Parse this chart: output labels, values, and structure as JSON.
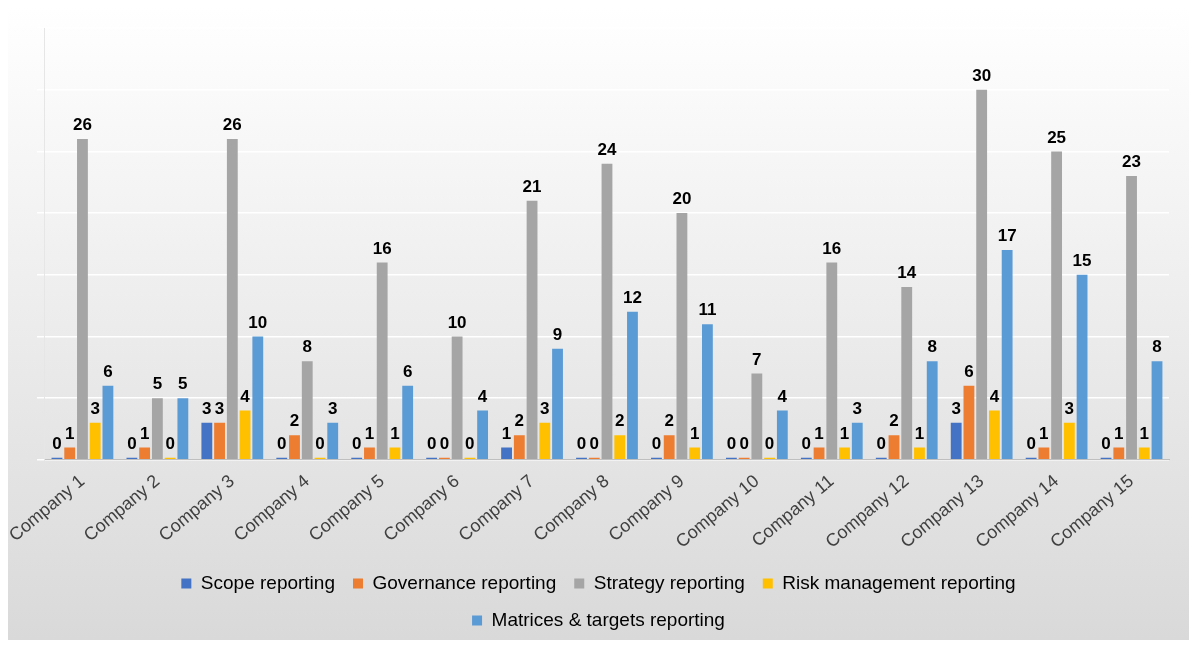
{
  "chart_data": {
    "type": "bar",
    "categories": [
      "Company 1",
      "Company 2",
      "Company 3",
      "Company 4",
      "Company 5",
      "Company 6",
      "Company 7",
      "Company 8",
      "Company 9",
      "Company 10",
      "Company 11",
      "Company 12",
      "Company 13",
      "Company 14",
      "Company 15"
    ],
    "series": [
      {
        "name": "Scope reporting",
        "color": "#4472c4",
        "values": [
          0,
          0,
          3,
          0,
          0,
          0,
          1,
          0,
          0,
          0,
          0,
          0,
          3,
          0,
          0
        ]
      },
      {
        "name": "Governance reporting",
        "color": "#ed7d31",
        "values": [
          1,
          1,
          3,
          2,
          1,
          0,
          2,
          0,
          2,
          0,
          1,
          2,
          6,
          1,
          1
        ]
      },
      {
        "name": "Strategy reporting",
        "color": "#a5a5a5",
        "values": [
          26,
          5,
          26,
          8,
          16,
          10,
          21,
          24,
          20,
          7,
          16,
          14,
          30,
          25,
          23
        ]
      },
      {
        "name": "Risk management reporting",
        "color": "#ffc000",
        "values": [
          3,
          0,
          4,
          0,
          1,
          0,
          3,
          2,
          1,
          0,
          1,
          1,
          4,
          3,
          1
        ]
      },
      {
        "name": "Matrices & targets reporting",
        "color": "#5b9bd5",
        "values": [
          6,
          5,
          10,
          3,
          6,
          4,
          9,
          12,
          11,
          4,
          3,
          8,
          17,
          15,
          8
        ]
      }
    ],
    "ylim": [
      0,
      35
    ],
    "yticks": [
      {
        "value": 0,
        "label": null
      },
      {
        "value": 5,
        "label": null
      },
      {
        "value": 10,
        "label": null
      },
      {
        "value": 15,
        "label": null
      },
      {
        "value": 20,
        "label": null
      },
      {
        "value": 25,
        "label": null
      },
      {
        "value": 30,
        "label": null
      },
      {
        "value": 35,
        "label": null
      }
    ],
    "tick_labels": "x",
    "grid": "y",
    "legend": "bottom",
    "data_labels": true
  }
}
